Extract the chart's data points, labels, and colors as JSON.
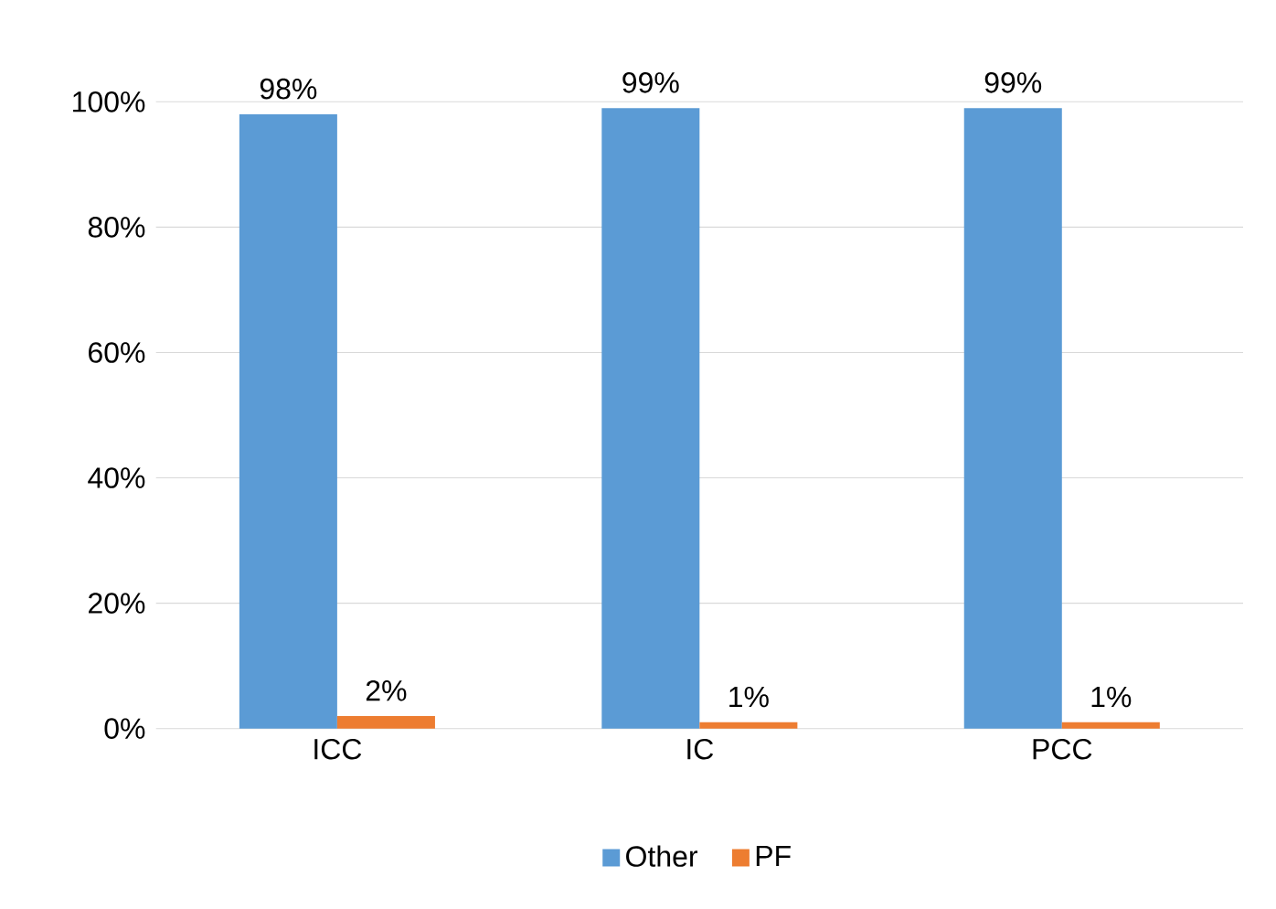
{
  "chart_data": {
    "type": "bar",
    "categories": [
      "ICC",
      "IC",
      "PCC"
    ],
    "series": [
      {
        "name": "Other",
        "color": "#5b9bd5",
        "values": [
          98,
          99,
          99
        ],
        "value_labels": [
          "98%",
          "99%",
          "99%"
        ]
      },
      {
        "name": "PF",
        "color": "#ed7d31",
        "values": [
          2,
          1,
          1
        ],
        "value_labels": [
          "2%",
          "1%",
          "1%"
        ]
      }
    ],
    "ylim": [
      0,
      100
    ],
    "yticks": [
      {
        "value": 0,
        "label": "0%"
      },
      {
        "value": 20,
        "label": "20%"
      },
      {
        "value": 40,
        "label": "40%"
      },
      {
        "value": 60,
        "label": "60%"
      },
      {
        "value": 80,
        "label": "80%"
      },
      {
        "value": 100,
        "label": "100%"
      }
    ],
    "grid": "y",
    "legend": "bottom"
  }
}
